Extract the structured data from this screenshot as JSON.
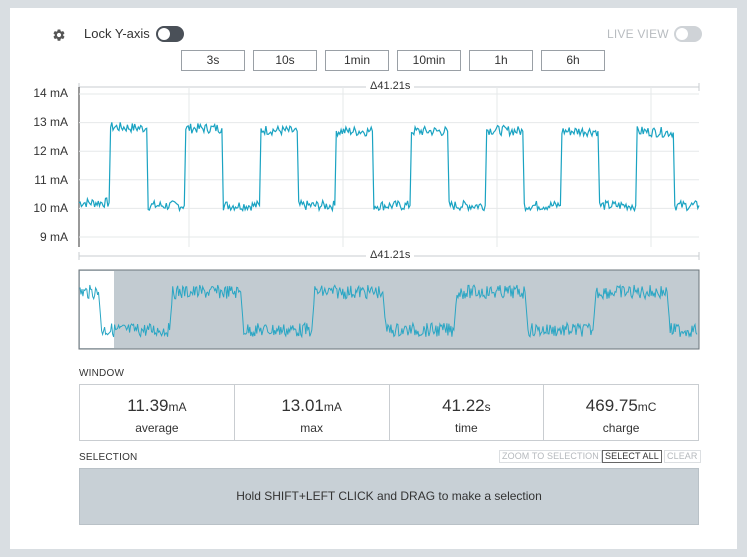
{
  "toolbar": {
    "lock_y_axis_label": "Lock Y-axis",
    "lock_y_axis_on": true,
    "live_view_label": "LIVE VIEW",
    "live_view_on": false,
    "settings_icon": "gear-icon",
    "ranges": [
      "3s",
      "10s",
      "1min",
      "10min",
      "1h",
      "6h"
    ]
  },
  "chart_data": {
    "type": "line",
    "title": "",
    "xlabel": "",
    "ylabel": "",
    "y_ticks": [
      "14 mA",
      "13 mA",
      "12 mA",
      "11 mA",
      "10 mA",
      "9 mA"
    ],
    "ylim": [
      8.5,
      14
    ],
    "window_duration_label": "Δ41.21s",
    "window_duration_label_bottom": "Δ41.21s",
    "x_seconds": [
      0,
      2.0,
      2.1,
      4.5,
      4.6,
      7.0,
      7.1,
      9.5,
      9.6,
      12.0,
      12.1,
      14.5,
      14.6,
      17.0,
      17.1,
      19.5,
      19.6,
      22.0,
      22.1,
      24.5,
      24.6,
      27.0,
      27.1,
      29.5,
      29.6,
      32.0,
      32.1,
      34.5,
      34.6,
      37.0,
      37.1,
      39.5,
      39.6,
      41.21
    ],
    "series": [
      {
        "values": [
          10.2,
          10.2,
          12.85,
          12.8,
          10.1,
          10.1,
          12.8,
          12.8,
          10.1,
          10.1,
          12.75,
          12.7,
          10.1,
          10.1,
          12.7,
          12.7,
          10.1,
          10.1,
          12.7,
          12.7,
          10.1,
          10.1,
          12.75,
          12.7,
          10.1,
          10.1,
          12.7,
          12.7,
          10.1,
          10.1,
          12.7,
          12.65,
          10.1,
          10.1
        ]
      }
    ],
    "line_color": "#1aa3c2",
    "overview": {
      "background": "#c2cbd1",
      "selection_fill": "#ffffff",
      "line_color": "#2aa6c4"
    }
  },
  "window": {
    "section_label": "WINDOW",
    "stats": [
      {
        "value": "11.39",
        "unit": "mA",
        "name": "average"
      },
      {
        "value": "13.01",
        "unit": "mA",
        "name": "max"
      },
      {
        "value": "41.22",
        "unit": "s",
        "name": "time"
      },
      {
        "value": "469.75",
        "unit": "mC",
        "name": "charge"
      }
    ]
  },
  "selection": {
    "section_label": "SELECTION",
    "zoom_to_selection": "ZOOM TO SELECTION",
    "select_all": "SELECT ALL",
    "clear": "CLEAR",
    "hint": "Hold SHIFT+LEFT CLICK and DRAG to make a selection"
  }
}
